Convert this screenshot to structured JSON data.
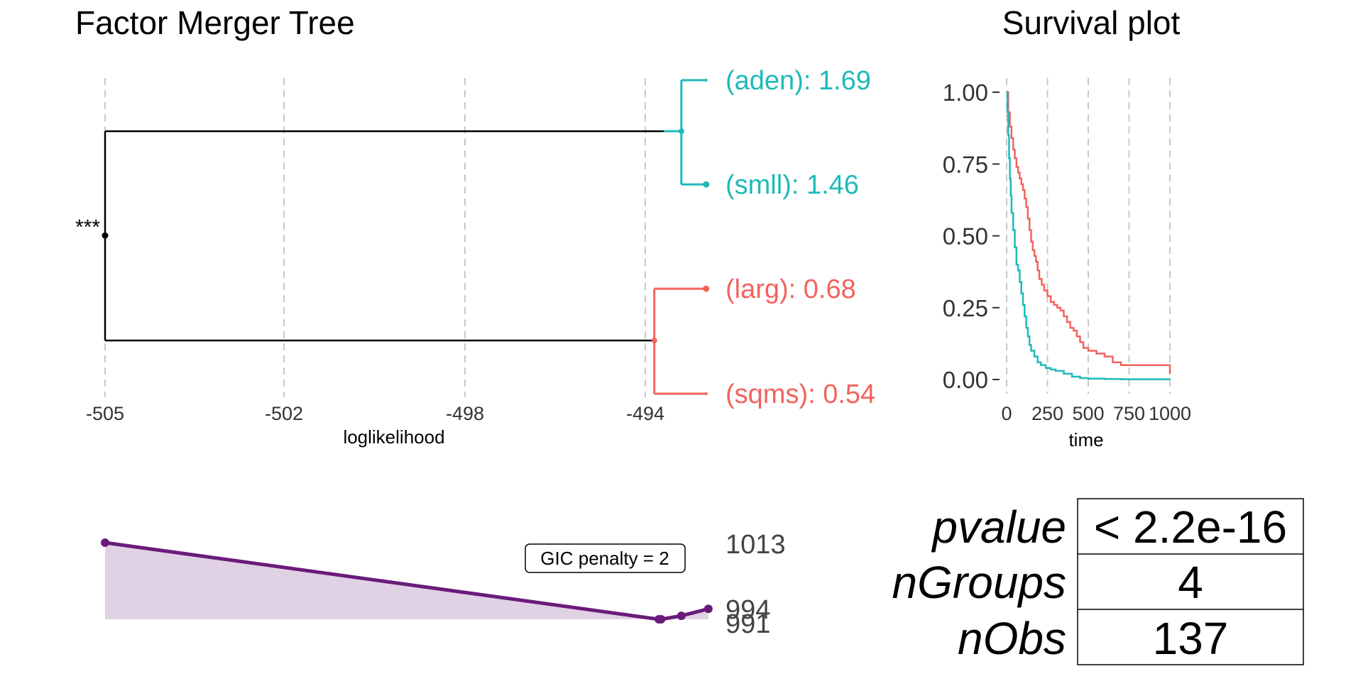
{
  "chart_data": [
    {
      "type": "dendrogram",
      "title": "Factor Merger Tree",
      "xlabel": "loglikelihood",
      "xlim": [
        -505,
        -492.3
      ],
      "xticks": [
        -505,
        -502,
        -498,
        -494
      ],
      "xtick_labels": [
        "-505",
        "-502",
        "-498",
        "-494"
      ],
      "root_annotation": "***",
      "root": {
        "x": -505
      },
      "clusters": [
        {
          "color": "#1fb9ba",
          "merge_x": -493.2,
          "leaves": [
            {
              "label": "(aden): 1.69",
              "x": -492.65
            },
            {
              "label": "(smll): 1.46",
              "x": -492.65
            }
          ]
        },
        {
          "color": "#f2635e",
          "merge_x": -493.8,
          "leaves": [
            {
              "label": "(larg): 0.68",
              "x": -492.65
            },
            {
              "label": "(sqms): 0.54",
              "x": -492.65
            }
          ]
        }
      ]
    },
    {
      "type": "line",
      "title": "Survival plot",
      "xlabel": "time",
      "ylabel": "",
      "xlim": [
        0,
        1000
      ],
      "ylim": [
        0,
        1
      ],
      "xticks": [
        0,
        250,
        500,
        750,
        1000
      ],
      "xtick_labels": [
        "0",
        "250",
        "500",
        "750",
        "1000"
      ],
      "yticks": [
        0,
        0.25,
        0.5,
        0.75,
        1
      ],
      "ytick_labels": [
        "0.00",
        "0.25",
        "0.50",
        "0.75",
        "1.00"
      ],
      "series": [
        {
          "color": "#f2635e",
          "x": [
            0,
            10,
            20,
            30,
            40,
            50,
            60,
            70,
            80,
            90,
            100,
            110,
            120,
            130,
            140,
            150,
            160,
            170,
            180,
            190,
            200,
            215,
            230,
            250,
            270,
            290,
            310,
            330,
            350,
            370,
            390,
            410,
            430,
            450,
            470,
            500,
            550,
            600,
            650,
            700,
            750,
            800,
            850,
            900,
            950,
            999,
            1000
          ],
          "y": [
            1,
            0.93,
            0.88,
            0.84,
            0.8,
            0.77,
            0.74,
            0.72,
            0.7,
            0.68,
            0.66,
            0.63,
            0.6,
            0.56,
            0.52,
            0.48,
            0.45,
            0.43,
            0.41,
            0.38,
            0.35,
            0.33,
            0.31,
            0.29,
            0.27,
            0.26,
            0.25,
            0.24,
            0.22,
            0.2,
            0.18,
            0.17,
            0.15,
            0.13,
            0.11,
            0.1,
            0.09,
            0.08,
            0.06,
            0.05,
            0.05,
            0.05,
            0.05,
            0.05,
            0.05,
            0.05,
            0.02
          ]
        },
        {
          "color": "#1fb9ba",
          "x": [
            0,
            5,
            10,
            15,
            20,
            25,
            30,
            40,
            50,
            60,
            70,
            80,
            90,
            100,
            110,
            120,
            130,
            140,
            150,
            170,
            190,
            210,
            240,
            270,
            300,
            350,
            400,
            450,
            500,
            600,
            700,
            800,
            900,
            1000
          ],
          "y": [
            1,
            0.93,
            0.85,
            0.77,
            0.7,
            0.64,
            0.58,
            0.52,
            0.46,
            0.4,
            0.38,
            0.34,
            0.3,
            0.26,
            0.22,
            0.18,
            0.15,
            0.12,
            0.1,
            0.08,
            0.06,
            0.05,
            0.04,
            0.035,
            0.03,
            0.02,
            0.01,
            0.005,
            0.003,
            0.002,
            0.001,
            0.001,
            0.001,
            0
          ]
        }
      ]
    },
    {
      "type": "area",
      "x": [
        -505,
        -493.7,
        -493.65,
        -493.2,
        -492.6
      ],
      "y": [
        1013,
        991,
        991,
        992,
        994
      ],
      "color": "#6a1b7a",
      "annotation": "GIC penalty = 2",
      "right_labels": [
        "1013",
        "994",
        "991"
      ]
    },
    {
      "type": "table",
      "rows": [
        {
          "label": "pvalue",
          "value": "< 2.2e-16"
        },
        {
          "label": "nGroups",
          "value": "4"
        },
        {
          "label": "nObs",
          "value": "137"
        }
      ]
    }
  ]
}
